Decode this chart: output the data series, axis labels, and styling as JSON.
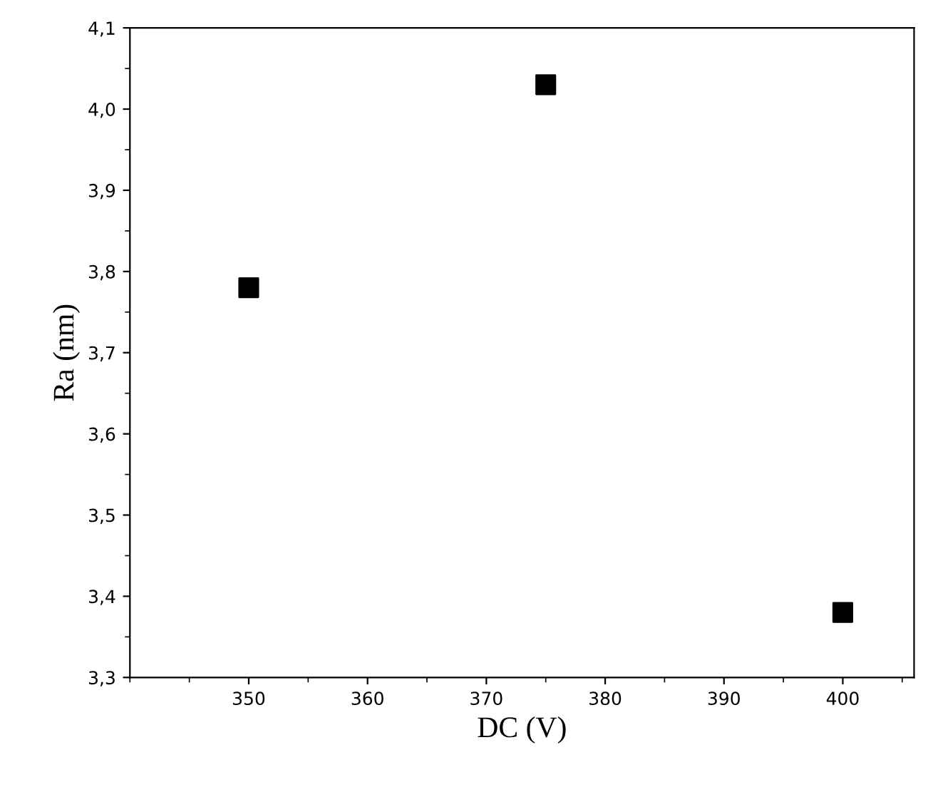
{
  "chart_data": {
    "type": "scatter",
    "xlabel": "DC (V)",
    "ylabel": "Ra (nm)",
    "x": [
      350,
      375,
      400
    ],
    "series": [
      {
        "color": "#000000",
        "values": [
          3.78,
          4.03,
          3.38
        ]
      }
    ],
    "marker": "square",
    "grid": false,
    "legend": false,
    "xlim": [
      340,
      406
    ],
    "xticks": [
      350,
      360,
      370,
      380,
      390,
      400
    ],
    "ylim": [
      3.3,
      4.1
    ],
    "yticks": [
      {
        "value": 3.3,
        "label": "3,3"
      },
      {
        "value": 3.4,
        "label": "3,4"
      },
      {
        "value": 3.5,
        "label": "3,5"
      },
      {
        "value": 3.6,
        "label": "3,6"
      },
      {
        "value": 3.7,
        "label": "3,7"
      },
      {
        "value": 3.8,
        "label": "3,8"
      },
      {
        "value": 3.9,
        "label": "3,9"
      },
      {
        "value": 4.0,
        "label": "4,0"
      },
      {
        "value": 4.1,
        "label": "4,1"
      }
    ]
  }
}
